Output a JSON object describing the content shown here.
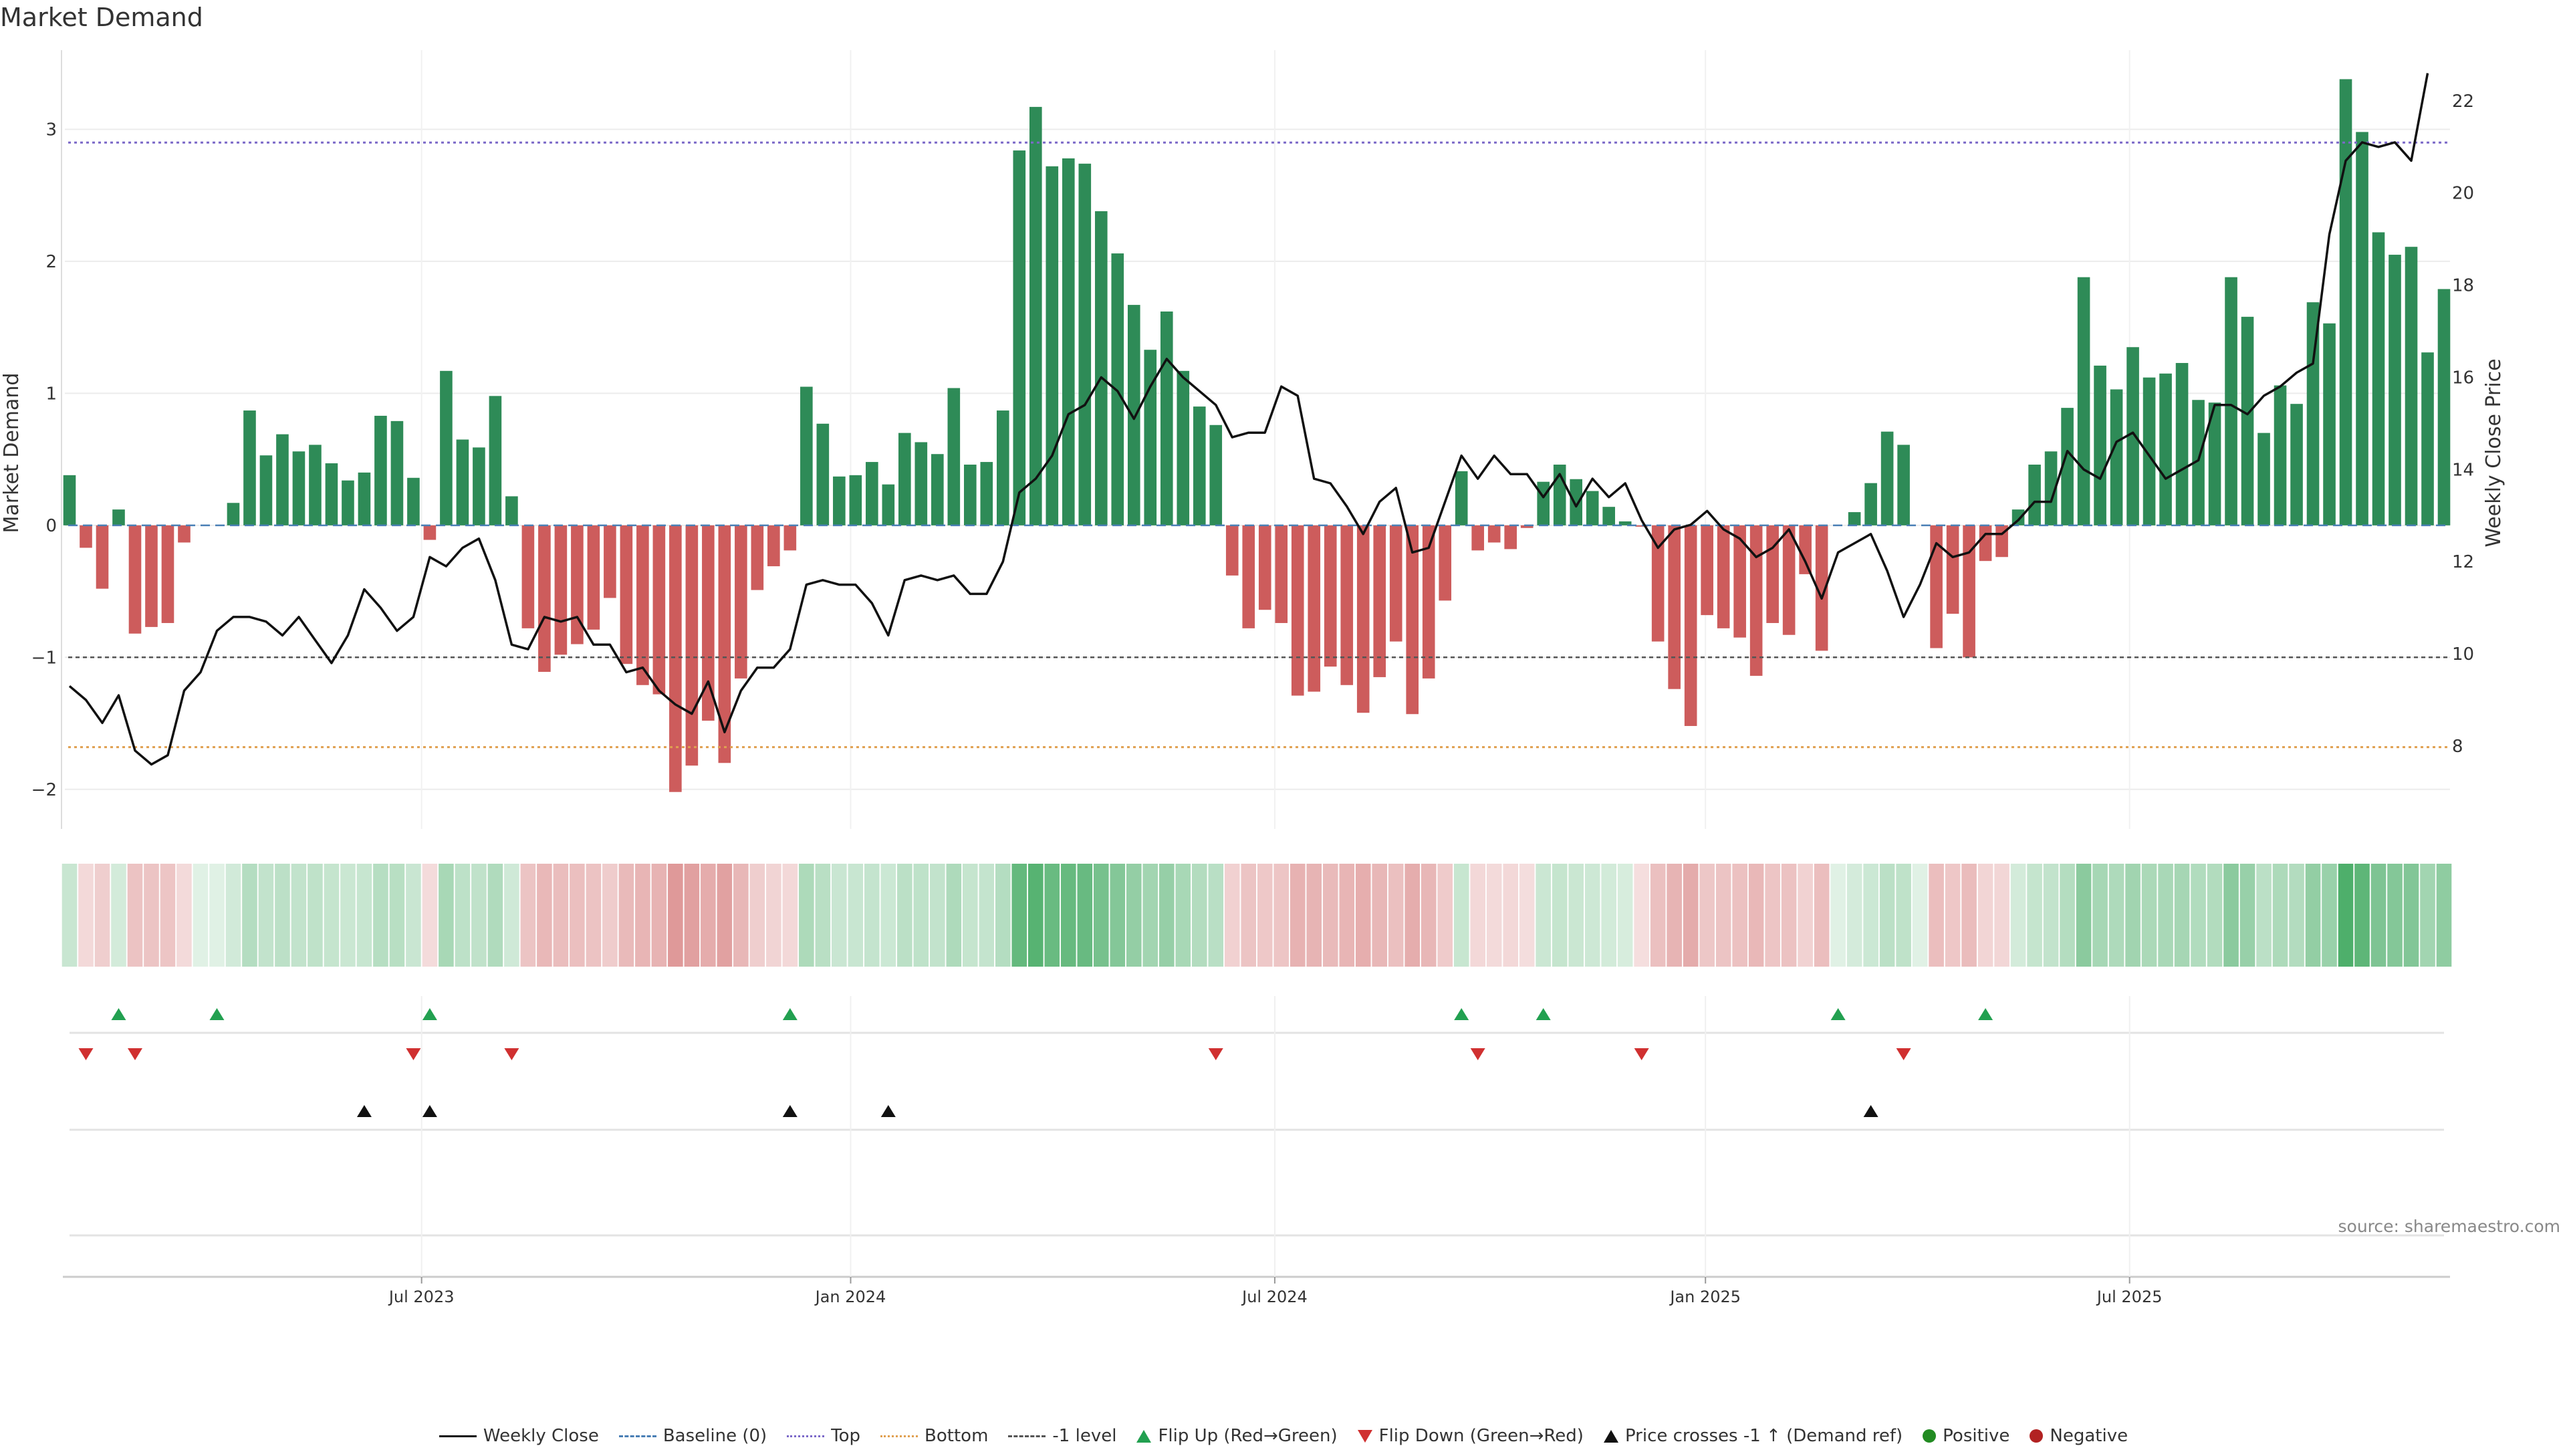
{
  "chart_data": {
    "type": "bar",
    "title": "Market Demand",
    "ylabel": "Market Demand",
    "y2label": "Weekly Close Price",
    "ylim": [
      -2.3,
      3.6
    ],
    "y2lim": [
      6.2,
      23.1
    ],
    "yticks": [
      -2,
      -1,
      0,
      1,
      2,
      3
    ],
    "y2ticks": [
      8,
      10,
      12,
      14,
      16,
      18,
      20,
      22
    ],
    "xticks": [
      {
        "label": "Jul 2023",
        "index": 21.5
      },
      {
        "label": "Jan 2024",
        "index": 47.7
      },
      {
        "label": "Jul 2024",
        "index": 73.6
      },
      {
        "label": "Jan 2025",
        "index": 99.9
      },
      {
        "label": "Jul 2025",
        "index": 125.8
      }
    ],
    "reference_lines": {
      "baseline": 0,
      "top": 2.9,
      "bottom": -1.68,
      "minus_one": -1
    },
    "demand": [
      0.38,
      -0.17,
      -0.48,
      0.12,
      -0.82,
      -0.77,
      -0.74,
      -0.13,
      0.0,
      0.0,
      0.17,
      0.87,
      0.53,
      0.69,
      0.56,
      0.61,
      0.47,
      0.34,
      0.4,
      0.83,
      0.79,
      0.36,
      -0.11,
      1.17,
      0.65,
      0.59,
      0.98,
      0.22,
      -0.78,
      -1.11,
      -0.98,
      -0.9,
      -0.79,
      -0.55,
      -1.05,
      -1.21,
      -1.28,
      -2.02,
      -1.82,
      -1.48,
      -1.8,
      -1.16,
      -0.49,
      -0.31,
      -0.19,
      1.05,
      0.77,
      0.37,
      0.38,
      0.48,
      0.31,
      0.7,
      0.63,
      0.54,
      1.04,
      0.46,
      0.48,
      0.87,
      2.84,
      3.17,
      2.72,
      2.78,
      2.74,
      2.38,
      2.06,
      1.67,
      1.33,
      1.62,
      1.17,
      0.9,
      0.76,
      -0.38,
      -0.78,
      -0.64,
      -0.74,
      -1.29,
      -1.26,
      -1.07,
      -1.21,
      -1.42,
      -1.15,
      -0.88,
      -1.43,
      -1.16,
      -0.57,
      0.41,
      -0.19,
      -0.13,
      -0.18,
      -0.02,
      0.33,
      0.46,
      0.35,
      0.26,
      0.14,
      0.03,
      -0.01,
      -0.88,
      -1.24,
      -1.52,
      -0.68,
      -0.78,
      -0.85,
      -1.14,
      -0.74,
      -0.83,
      -0.37,
      -0.95,
      0.0,
      0.1,
      0.32,
      0.71,
      0.61,
      0.0,
      -0.93,
      -0.67,
      -1.0,
      -0.27,
      -0.24,
      0.12,
      0.46,
      0.56,
      0.89,
      1.88,
      1.21,
      1.03,
      1.35,
      1.12,
      1.15,
      1.23,
      0.95,
      0.93,
      1.88,
      1.58,
      0.7,
      1.06,
      0.92,
      1.69,
      1.53,
      3.38,
      2.98,
      2.22,
      2.05,
      2.11,
      1.31,
      1.79
    ],
    "weekly_close": [
      9.3,
      9.0,
      8.5,
      9.1,
      7.9,
      7.6,
      7.8,
      9.2,
      9.6,
      10.5,
      10.8,
      10.8,
      10.7,
      10.4,
      10.8,
      10.3,
      9.8,
      10.4,
      11.4,
      11.0,
      10.5,
      10.8,
      12.1,
      11.9,
      12.3,
      12.5,
      11.6,
      10.2,
      10.1,
      10.8,
      10.7,
      10.8,
      10.2,
      10.2,
      9.6,
      9.7,
      9.2,
      8.9,
      8.7,
      9.4,
      8.3,
      9.2,
      9.7,
      9.7,
      10.1,
      11.5,
      11.6,
      11.5,
      11.5,
      11.1,
      10.4,
      11.6,
      11.7,
      11.6,
      11.7,
      11.3,
      11.3,
      12.0,
      13.5,
      13.8,
      14.3,
      15.2,
      15.4,
      16.0,
      15.7,
      15.1,
      15.8,
      16.4,
      16.0,
      15.7,
      15.4,
      14.7,
      14.8,
      14.8,
      15.8,
      15.6,
      13.8,
      13.7,
      13.2,
      12.6,
      13.3,
      13.6,
      12.2,
      12.3,
      13.3,
      14.3,
      13.8,
      14.3,
      13.9,
      13.9,
      13.4,
      13.9,
      13.2,
      13.8,
      13.4,
      13.7,
      12.9,
      12.3,
      12.7,
      12.8,
      13.1,
      12.7,
      12.5,
      12.1,
      12.3,
      12.7,
      12.0,
      11.2,
      12.2,
      12.4,
      12.6,
      11.8,
      10.8,
      11.5,
      12.4,
      12.1,
      12.2,
      12.6,
      12.6,
      12.9,
      13.3,
      13.3,
      14.4,
      14.0,
      13.8,
      14.6,
      14.8,
      14.3,
      13.8,
      14.0,
      14.2,
      15.4,
      15.4,
      15.2,
      15.6,
      15.8,
      16.1,
      16.3,
      19.1,
      20.7,
      21.1,
      21.0,
      21.1,
      20.7,
      22.6
    ],
    "heat_strip": [
      0.38,
      -0.17,
      -0.48,
      0.12,
      -0.82,
      -0.77,
      -0.74,
      -0.13,
      0.0,
      0.0,
      0.17,
      0.87,
      0.53,
      0.69,
      0.56,
      0.61,
      0.47,
      0.34,
      0.4,
      0.83,
      0.79,
      0.36,
      -0.11,
      1.17,
      0.65,
      0.59,
      0.98,
      0.22,
      -0.78,
      -1.11,
      -0.98,
      -0.9,
      -0.79,
      -0.55,
      -1.05,
      -1.21,
      -1.28,
      -2.02,
      -1.82,
      -1.48,
      -1.8,
      -1.16,
      -0.49,
      -0.31,
      -0.19,
      1.05,
      0.77,
      0.37,
      0.38,
      0.48,
      0.31,
      0.7,
      0.63,
      0.54,
      1.04,
      0.46,
      0.48,
      0.87,
      2.84,
      3.17,
      2.72,
      2.78,
      2.74,
      2.38,
      2.06,
      1.67,
      1.33,
      1.62,
      1.17,
      0.9,
      0.76,
      -0.38,
      -0.78,
      -0.64,
      -0.74,
      -1.29,
      -1.26,
      -1.07,
      -1.21,
      -1.42,
      -1.15,
      -0.88,
      -1.43,
      -1.16,
      -0.57,
      0.41,
      -0.19,
      -0.13,
      -0.18,
      -0.02,
      0.33,
      0.46,
      0.35,
      0.26,
      0.14,
      0.03,
      -0.01,
      -0.88,
      -1.24,
      -1.52,
      -0.68,
      -0.78,
      -0.85,
      -1.14,
      -0.74,
      -0.83,
      -0.37,
      -0.95,
      0.0,
      0.1,
      0.32,
      0.71,
      0.61,
      0.0,
      -0.93,
      -0.67,
      -1.0,
      -0.27,
      -0.24,
      0.12,
      0.46,
      0.56,
      0.89,
      1.88,
      1.21,
      1.03,
      1.35,
      1.12,
      1.15,
      1.23,
      0.95,
      0.93,
      1.88,
      1.58,
      0.7,
      1.06,
      0.92,
      1.69,
      1.53,
      3.38,
      2.98,
      2.22,
      2.05,
      2.11,
      1.31,
      1.79
    ],
    "flip_up_idx": [
      3,
      9,
      22,
      44,
      85,
      90,
      108,
      117
    ],
    "flip_down_idx": [
      1,
      4,
      21,
      27,
      70,
      86,
      96,
      112
    ],
    "price_cross_idx": [
      18,
      22,
      44,
      50,
      110
    ],
    "colors": {
      "positive_bar": "#2e8b57",
      "negative_bar": "#cd5c5c",
      "price_line": "#111111",
      "baseline": "#4a7fb5",
      "top_line": "#7b68c8",
      "bottom_line": "#e0a050",
      "minus_one_line": "#555555",
      "flip_up": "#22a050",
      "flip_down": "#d03030",
      "price_cross": "#111111",
      "positive_dot": "#228b22",
      "negative_dot": "#b22222"
    }
  },
  "legend": [
    {
      "label": "Weekly Close",
      "kind": "line",
      "color": "#111111",
      "style": "solid"
    },
    {
      "label": "Baseline (0)",
      "kind": "line",
      "color": "#4a7fb5",
      "style": "dashed"
    },
    {
      "label": "Top",
      "kind": "line",
      "color": "#7b68c8",
      "style": "dotted"
    },
    {
      "label": "Bottom",
      "kind": "line",
      "color": "#e0a050",
      "style": "dotted"
    },
    {
      "label": "-1 level",
      "kind": "line",
      "color": "#555555",
      "style": "dashed"
    },
    {
      "label": "Flip Up (Red→Green)",
      "kind": "tri-up",
      "color": "#22a050"
    },
    {
      "label": "Flip Down (Green→Red)",
      "kind": "tri-down",
      "color": "#d03030"
    },
    {
      "label": "Price crosses -1 ↑ (Demand ref)",
      "kind": "tri-up",
      "color": "#111111"
    },
    {
      "label": "Positive",
      "kind": "dot",
      "color": "#228b22"
    },
    {
      "label": "Negative",
      "kind": "dot",
      "color": "#b22222"
    }
  ],
  "source": "source: sharemaestro.com"
}
